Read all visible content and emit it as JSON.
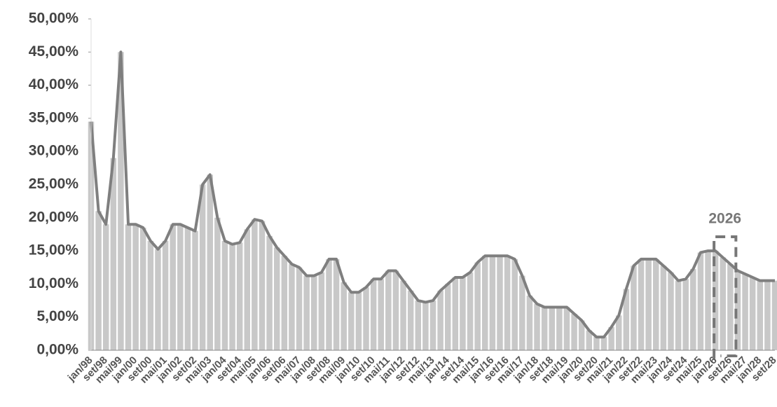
{
  "chart_data": {
    "type": "area",
    "annotation": "2026",
    "color": "#c8c8c8",
    "line_color": "#7f7f7f",
    "ylim": [
      0,
      50
    ],
    "yticks": [
      {
        "value": 0,
        "label": "0,00%"
      },
      {
        "value": 5,
        "label": "5,00%"
      },
      {
        "value": 10,
        "label": "10,00%"
      },
      {
        "value": 15,
        "label": "15,00%"
      },
      {
        "value": 20,
        "label": "20,00%"
      },
      {
        "value": 25,
        "label": "25,00%"
      },
      {
        "value": 30,
        "label": "30,00%"
      },
      {
        "value": 35,
        "label": "35,00%"
      },
      {
        "value": 40,
        "label": "40,00%"
      },
      {
        "value": 45,
        "label": "45,00%"
      },
      {
        "value": 50,
        "label": "50,00%"
      }
    ],
    "categories": [
      "jan/98",
      null,
      "set/98",
      null,
      "mai/99",
      null,
      "jan/00",
      null,
      "set/00",
      null,
      "mai/01",
      null,
      "jan/02",
      null,
      "set/02",
      null,
      "mai/03",
      null,
      "jan/04",
      null,
      "set/04",
      null,
      "mai/05",
      null,
      "jan/06",
      null,
      "set/06",
      null,
      "mai/07",
      null,
      "jan/08",
      null,
      "set/08",
      null,
      "mai/09",
      null,
      "jan/10",
      null,
      "set/10",
      null,
      "mai/11",
      null,
      "jan/12",
      null,
      "set/12",
      null,
      "mai/13",
      null,
      "jan/14",
      null,
      "set/14",
      null,
      "mai/15",
      null,
      "jan/16",
      null,
      "set/16",
      null,
      "mai/17",
      null,
      "jan/18",
      null,
      "set/18",
      null,
      "mai/19",
      null,
      "jan/20",
      null,
      "set/20",
      null,
      "mai/21",
      null,
      "jan/22",
      null,
      "set/22",
      null,
      "mai/23",
      null,
      "jan/24",
      null,
      "set/24",
      null,
      "mai/25",
      null,
      "jan/26",
      null,
      "set/26",
      null,
      "mai/27",
      null,
      "jan/28",
      null,
      "set/28"
    ],
    "values": [
      34.5,
      21,
      19,
      29,
      45,
      19,
      19,
      18.5,
      16.5,
      15.25,
      16.5,
      19,
      19,
      18.5,
      18,
      25,
      26.5,
      20,
      16.5,
      16,
      16.25,
      18.25,
      19.75,
      19.5,
      17.25,
      15.5,
      14.25,
      13,
      12.5,
      11.25,
      11.25,
      11.75,
      13.75,
      13.75,
      10.25,
      8.75,
      8.75,
      9.5,
      10.75,
      10.75,
      12,
      12,
      10.5,
      9,
      7.5,
      7.25,
      7.5,
      9,
      10,
      11,
      11,
      11.75,
      13.25,
      14.25,
      14.25,
      14.25,
      14.25,
      13.75,
      11.25,
      8.25,
      7,
      6.5,
      6.5,
      6.5,
      6.5,
      5.5,
      4.5,
      3,
      2,
      2,
      3.5,
      5.25,
      9.25,
      12.75,
      13.75,
      13.75,
      13.75,
      12.75,
      11.75,
      10.5,
      10.75,
      12.25,
      14.75,
      15,
      15,
      14,
      13,
      12,
      11.5,
      11,
      10.5,
      10.5,
      10.5
    ]
  }
}
